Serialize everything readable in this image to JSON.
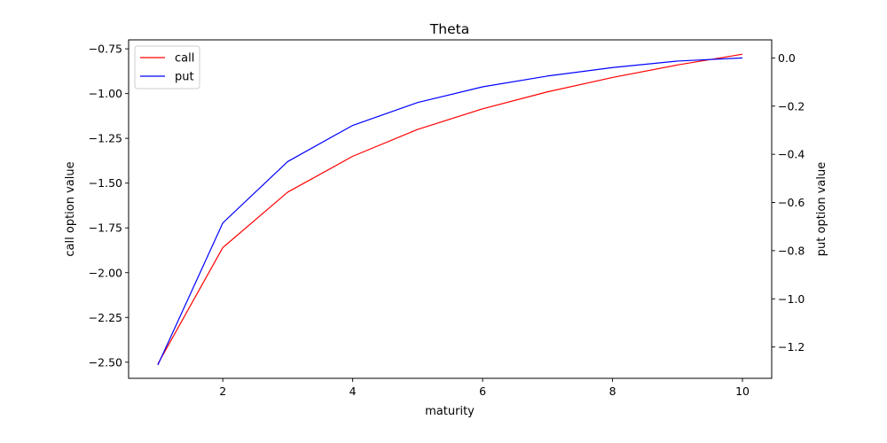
{
  "chart_data": {
    "type": "line",
    "title": "Theta",
    "xlabel": "maturity",
    "ylabel": "call option value",
    "y2label": "put option value",
    "x": [
      1,
      2,
      3,
      4,
      5,
      6,
      7,
      8,
      9,
      10
    ],
    "xlim": [
      0.55,
      10.45
    ],
    "ylim": [
      -2.59,
      -0.7
    ],
    "y2lim": [
      -1.33,
      0.075
    ],
    "xticks": [
      2,
      4,
      6,
      8,
      10
    ],
    "xtick_labels": [
      "2",
      "4",
      "6",
      "8",
      "10"
    ],
    "yticks": [
      -2.5,
      -2.25,
      -2.0,
      -1.75,
      -1.5,
      -1.25,
      -1.0,
      -0.75
    ],
    "ytick_labels": [
      "−2.50",
      "−2.25",
      "−2.00",
      "−1.75",
      "−1.50",
      "−1.25",
      "−1.00",
      "−0.75"
    ],
    "y2ticks": [
      -1.2,
      -1.0,
      -0.8,
      -0.6,
      -0.4,
      -0.2,
      0.0
    ],
    "y2tick_labels": [
      "−1.2",
      "−1.0",
      "−0.8",
      "−0.6",
      "−0.4",
      "−0.2",
      "0.0"
    ],
    "grid": false,
    "legend_position": "top-left",
    "series": [
      {
        "name": "call",
        "axis": "left",
        "color": "#ff0000",
        "values": [
          -2.51,
          -1.86,
          -1.55,
          -1.35,
          -1.2,
          -1.085,
          -0.99,
          -0.91,
          -0.84,
          -0.78
        ]
      },
      {
        "name": "put",
        "axis": "right",
        "color": "#0000ff",
        "values": [
          -1.275,
          -0.685,
          -0.43,
          -0.28,
          -0.185,
          -0.12,
          -0.075,
          -0.04,
          -0.013,
          0.0
        ]
      }
    ]
  }
}
